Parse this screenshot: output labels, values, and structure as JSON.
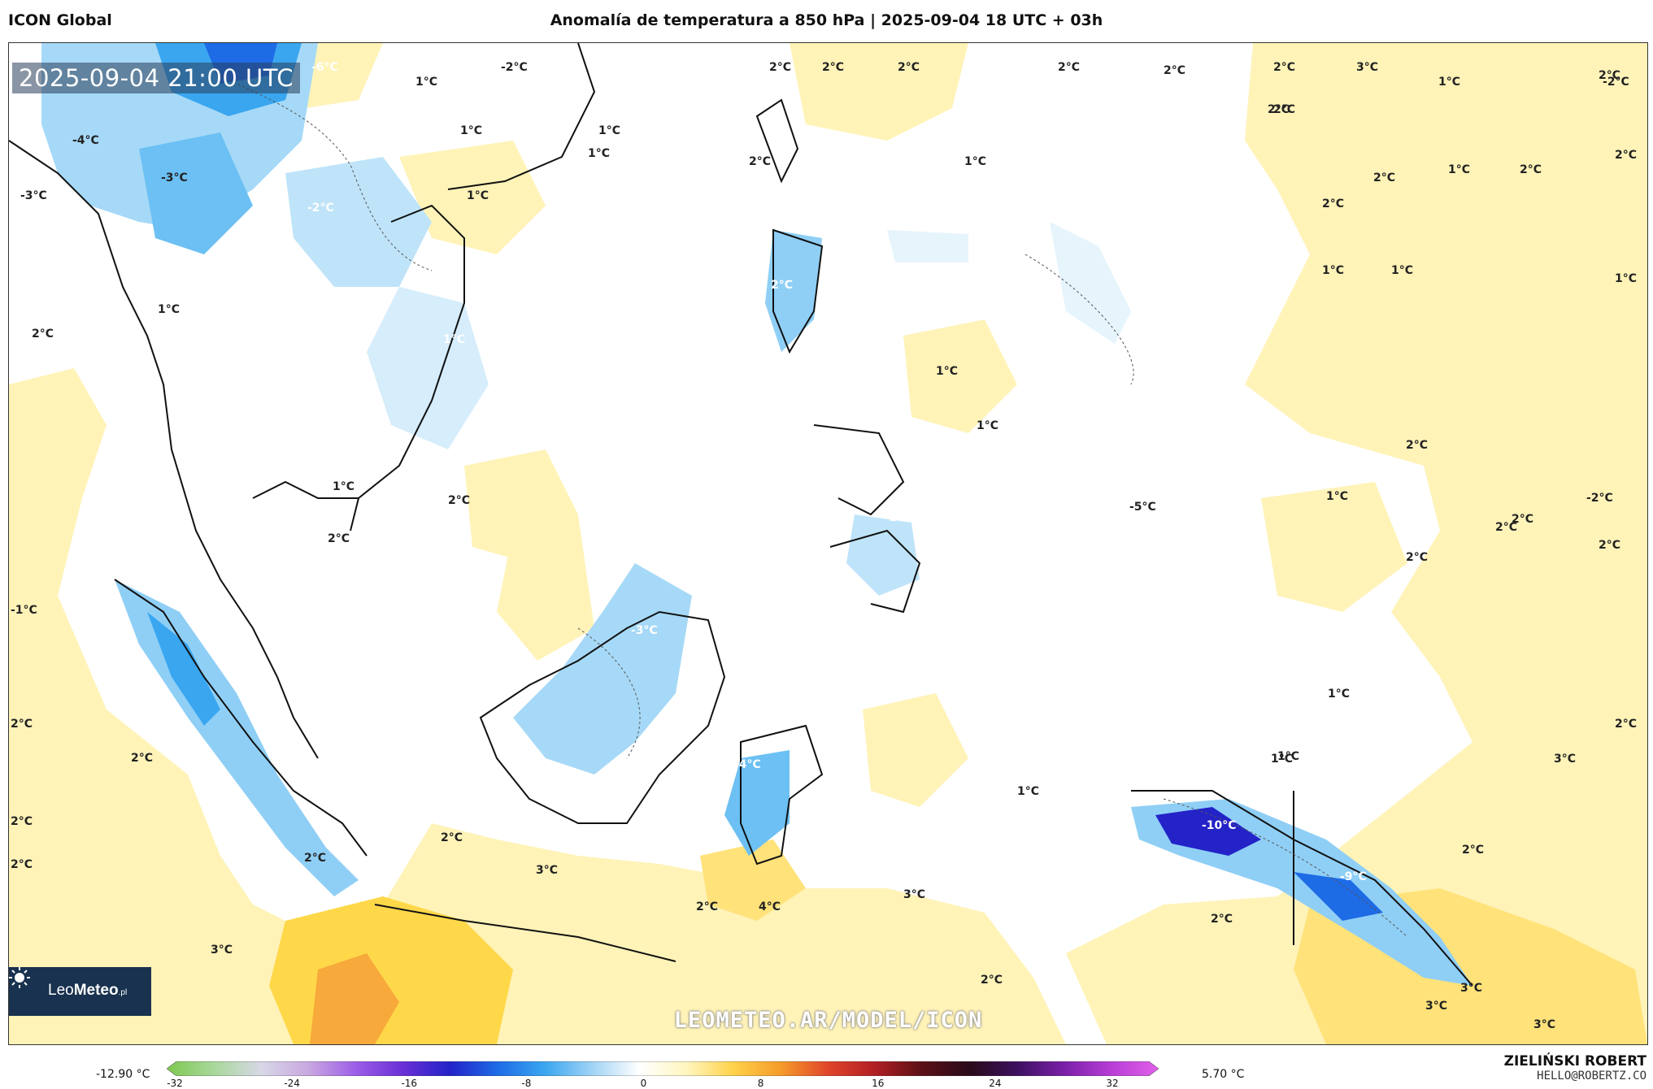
{
  "header": {
    "model": "ICON Global",
    "title": "Anomalía de temperatura a 850 hPa | 2025-09-04 18 UTC + 03h"
  },
  "map": {
    "timestamp": "2025-09-04 21:00 UTC",
    "watermark": "LEOMETEO.AR/MODEL/ICON",
    "logo": {
      "text_light": "Leo",
      "text_bold": "Meteo",
      "suffix": ".pl"
    },
    "contour_labels": [
      {
        "text": "-6°C"
      },
      {
        "text": "1°C"
      },
      {
        "text": "-2°C"
      },
      {
        "text": "2°C"
      },
      {
        "text": "2°C"
      },
      {
        "text": "2°C"
      },
      {
        "text": "2°C"
      },
      {
        "text": "2°C"
      },
      {
        "text": "2°C"
      },
      {
        "text": "3°C"
      },
      {
        "text": "1°C"
      },
      {
        "text": "2°C"
      },
      {
        "text": "-4°C"
      },
      {
        "text": "-2°C"
      },
      {
        "text": "1°C"
      },
      {
        "text": "2°C"
      },
      {
        "text": "1°C"
      },
      {
        "text": "1°C"
      },
      {
        "text": "2°C"
      },
      {
        "text": "2°C"
      },
      {
        "text": "-3°C"
      },
      {
        "text": "2°C"
      },
      {
        "text": "1°C"
      },
      {
        "text": "-2°C"
      },
      {
        "text": "2°C"
      },
      {
        "text": "1°C"
      },
      {
        "text": "2°C"
      },
      {
        "text": "2°C"
      },
      {
        "text": "-3°C"
      },
      {
        "text": "1°C"
      },
      {
        "text": "1°C"
      },
      {
        "text": "1°C"
      },
      {
        "text": "1°C"
      },
      {
        "text": "2°C"
      },
      {
        "text": "-2°C"
      },
      {
        "text": "1°C"
      },
      {
        "text": "1°C"
      },
      {
        "text": "1°C"
      },
      {
        "text": "2°C"
      },
      {
        "text": "1°C"
      },
      {
        "text": "2°C"
      },
      {
        "text": "2°C"
      },
      {
        "text": "1°C"
      },
      {
        "text": "2°C"
      },
      {
        "text": "-2°C"
      },
      {
        "text": "1°C"
      },
      {
        "text": "2°C"
      },
      {
        "text": "1°C"
      },
      {
        "text": "-5°C"
      },
      {
        "text": "2°C"
      },
      {
        "text": "-1°C"
      },
      {
        "text": "-3°C"
      },
      {
        "text": "2°C"
      },
      {
        "text": "2°C"
      },
      {
        "text": "1°C"
      },
      {
        "text": "2°C"
      },
      {
        "text": "2°C"
      },
      {
        "text": "1°C"
      },
      {
        "text": "-2°C"
      },
      {
        "text": "3°C"
      },
      {
        "text": "2°C"
      },
      {
        "text": "2°C"
      },
      {
        "text": "-4°C"
      },
      {
        "text": "1°C"
      },
      {
        "text": "-10°C"
      },
      {
        "text": "2°C"
      },
      {
        "text": "2°C"
      },
      {
        "text": "1°C"
      },
      {
        "text": "2°C"
      },
      {
        "text": "-9°C"
      },
      {
        "text": "3°C"
      },
      {
        "text": "3°C"
      },
      {
        "text": "2°C"
      },
      {
        "text": "4°C"
      },
      {
        "text": "2°C"
      },
      {
        "text": "2°C"
      },
      {
        "text": "3°C"
      },
      {
        "text": "2°C"
      },
      {
        "text": "3°C"
      },
      {
        "text": "3°C"
      },
      {
        "text": "3°C"
      }
    ]
  },
  "colorbar": {
    "min_label": "-12.90 °C",
    "max_label": "5.70 °C",
    "ticks": [
      "-32",
      "-24",
      "-16",
      "-8",
      "0",
      "8",
      "16",
      "24",
      "32"
    ],
    "colors": [
      "#7ec850",
      "#a8d89a",
      "#d7d7e6",
      "#c9a8e0",
      "#9c5ee8",
      "#6a2fd6",
      "#2323c8",
      "#1e6be6",
      "#3aa6f0",
      "#9fd3f5",
      "#ffffff",
      "#fff6bf",
      "#ffd24a",
      "#f59b2a",
      "#e0452b",
      "#b01f24",
      "#5a1016",
      "#2a0a1a",
      "#3d1060",
      "#7a1fa8",
      "#b83ed6",
      "#e060e8"
    ]
  },
  "author": {
    "name": "ZIELIŃSKI ROBERT",
    "email": "HELLO@ROBERTZ.CO"
  }
}
